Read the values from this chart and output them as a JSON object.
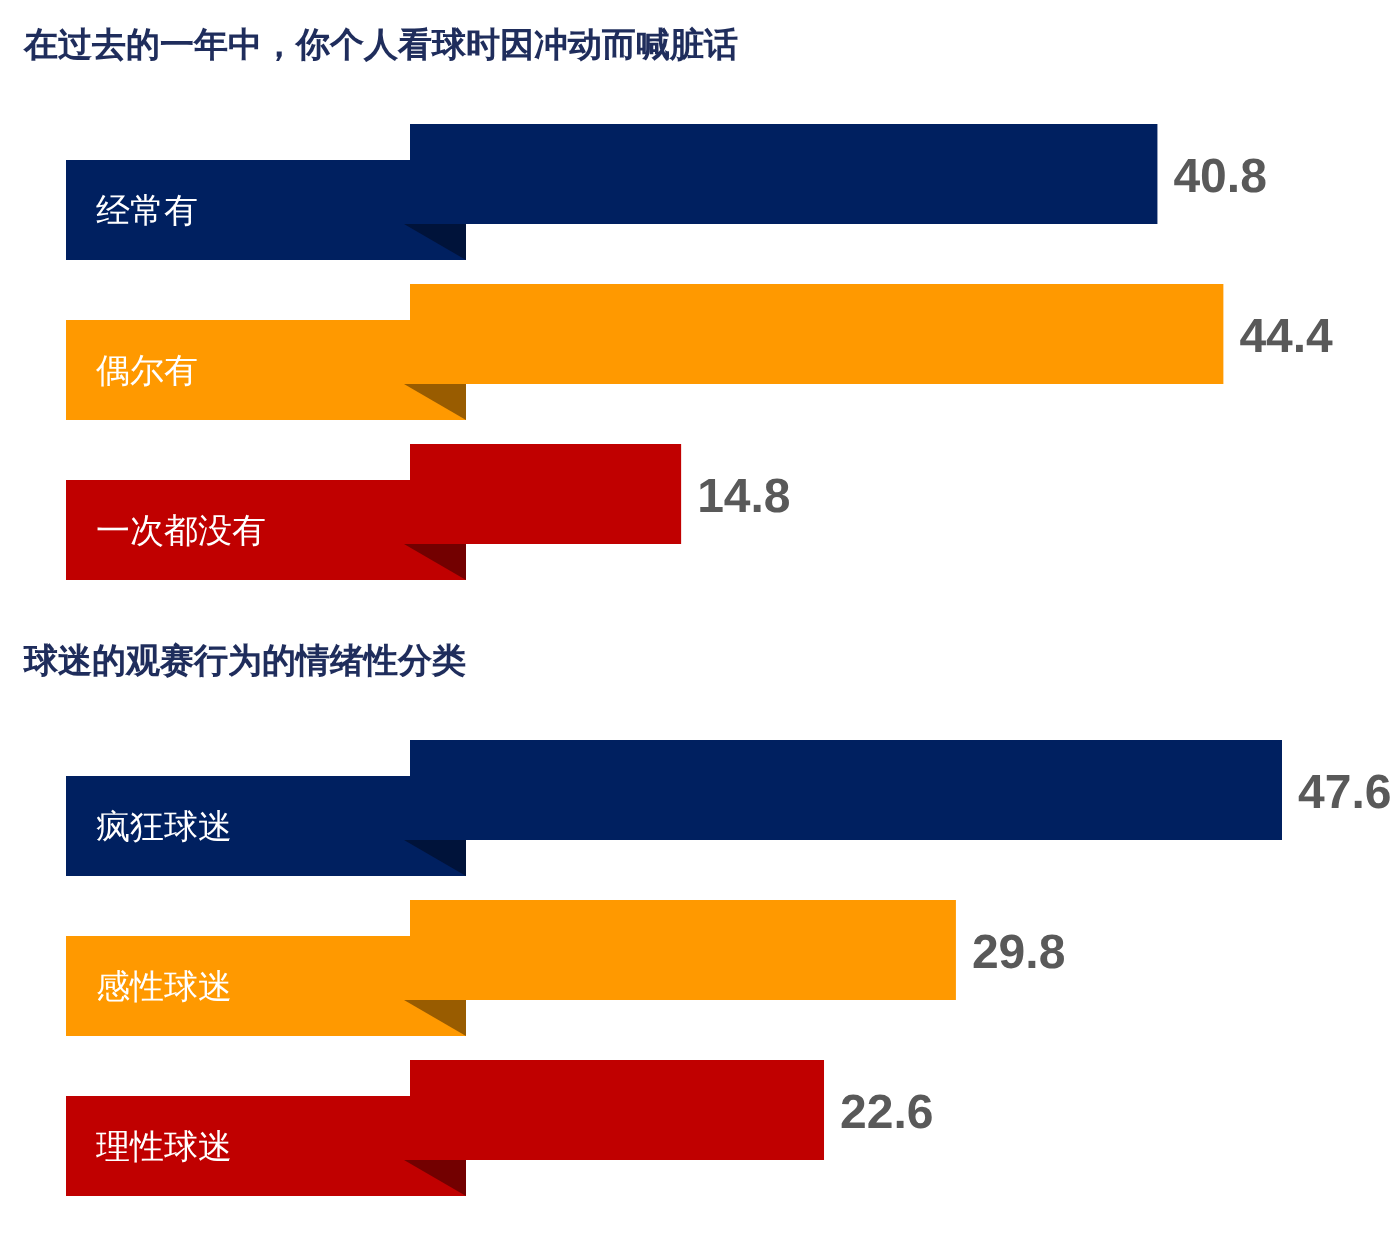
{
  "chart_data": [
    {
      "type": "bar",
      "orientation": "horizontal",
      "title": "在过去的一年中，你个人看球时因冲动而喊脏话",
      "categories": [
        "经常有",
        "偶尔有",
        "一次都没有"
      ],
      "values": [
        40.8,
        44.4,
        14.8
      ],
      "colors": [
        "#002060",
        "#ff9900",
        "#c00000"
      ],
      "data_labels": true
    },
    {
      "type": "bar",
      "orientation": "horizontal",
      "title": "球迷的观赛行为的情绪性分类",
      "categories": [
        "疯狂球迷",
        "感性球迷",
        "理性球迷"
      ],
      "values": [
        47.6,
        29.8,
        22.6
      ],
      "colors": [
        "#002060",
        "#ff9900",
        "#c00000"
      ],
      "data_labels": true
    }
  ]
}
